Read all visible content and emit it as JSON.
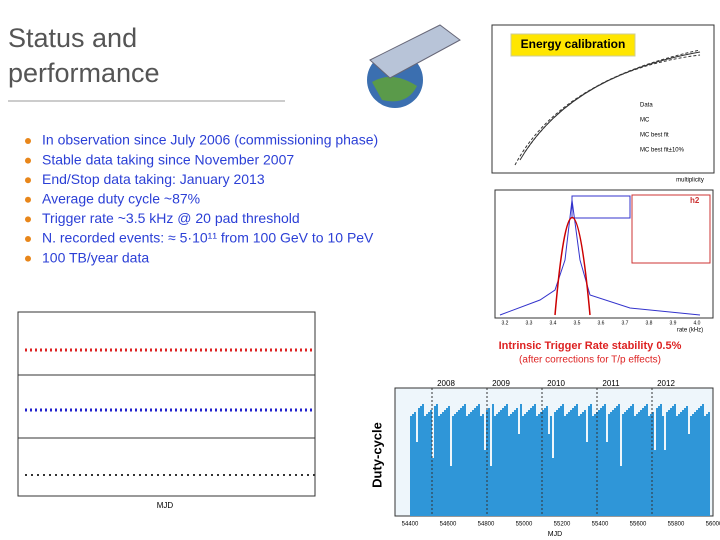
{
  "header": {
    "title_lines": [
      "Status and",
      "performance"
    ]
  },
  "bullets": [
    "In observation since July 2006 (commissioning phase)",
    "Stable data taking since November 2007",
    "End/Stop data taking: January 2013",
    "Average duty cycle ~87%",
    "Trigger rate ~3.5 kHz @ 20 pad threshold",
    "N. recorded events: ≈ 5·10¹¹ from 100 GeV to 10 PeV",
    "100 TB/year data"
  ],
  "energy_plot": {
    "label": "Energy calibration",
    "x_label": "multiplicity",
    "legend": [
      "Data",
      "MC",
      "MC best fit",
      "MC best fit±10%"
    ]
  },
  "rate_plot": {
    "box": "h2",
    "x_label": "rate (kHz)",
    "xticks": [
      "3.2",
      "3.3",
      "3.4",
      "3.5",
      "3.6",
      "3.7",
      "3.8",
      "3.9",
      "4.0"
    ],
    "caption": "Intrinsic Trigger Rate stability 0.5%",
    "note": "(after corrections for T/p effects)"
  },
  "stability_plot": {
    "x_label": "MJD"
  },
  "duty_plot": {
    "y_label": "Duty-cycle",
    "x_label": "MJD",
    "years": [
      "2008",
      "2009",
      "2010",
      "2011",
      "2012"
    ],
    "xticks": [
      "54400",
      "54600",
      "54800",
      "55000",
      "55200",
      "55400",
      "55600",
      "55800",
      "56000"
    ]
  }
}
